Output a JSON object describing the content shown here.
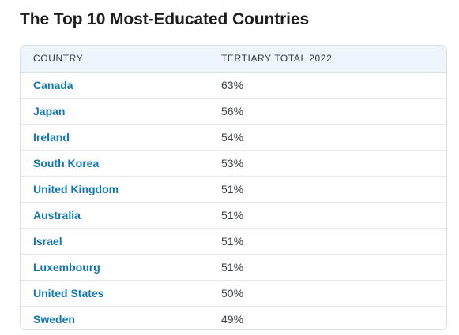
{
  "page": {
    "title": "The Top 10 Most-Educated Countries"
  },
  "table": {
    "headers": {
      "country": "COUNTRY",
      "value": "TERTIARY TOTAL 2022"
    },
    "rows": [
      {
        "country": "Canada",
        "value": "63%"
      },
      {
        "country": "Japan",
        "value": "56%"
      },
      {
        "country": "Ireland",
        "value": "54%"
      },
      {
        "country": "South Korea",
        "value": "53%"
      },
      {
        "country": "United Kingdom",
        "value": "51%"
      },
      {
        "country": "Australia",
        "value": "51%"
      },
      {
        "country": "Israel",
        "value": "51%"
      },
      {
        "country": "Luxembourg",
        "value": "51%"
      },
      {
        "country": "United States",
        "value": "50%"
      },
      {
        "country": "Sweden",
        "value": "49%"
      }
    ]
  },
  "colors": {
    "link": "#1178b5",
    "header_bg": "#eef6fc",
    "border": "#d9e1e8",
    "title": "#1d1d1f"
  }
}
